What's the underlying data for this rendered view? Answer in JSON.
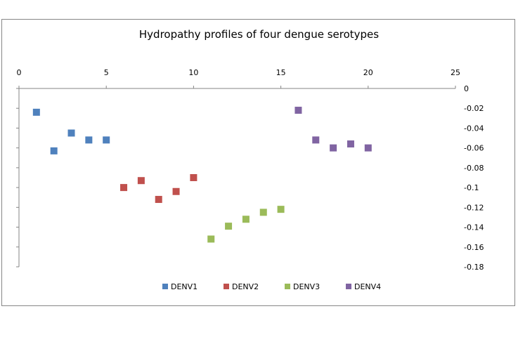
{
  "chart_data": {
    "type": "scatter",
    "title": "Hydropathy profiles of four dengue serotypes",
    "xlabel": "",
    "ylabel": "",
    "xlim": [
      0,
      25
    ],
    "ylim": [
      -0.18,
      0
    ],
    "x_ticks": [
      "0",
      "5",
      "10",
      "15",
      "20",
      "25"
    ],
    "y_ticks": [
      "0",
      "-0.02",
      "-0.04",
      "-0.06",
      "-0.08",
      "-0.1",
      "-0.12",
      "-0.14",
      "-0.16",
      "-0.18"
    ],
    "x_axis_position": "top",
    "y_axis_position": "right",
    "grid": false,
    "legend_position": "bottom",
    "series": [
      {
        "name": "DENV1",
        "color": "#4F81BD",
        "points": [
          [
            1,
            -0.024
          ],
          [
            2,
            -0.063
          ],
          [
            3,
            -0.045
          ],
          [
            4,
            -0.052
          ],
          [
            5,
            -0.052
          ]
        ]
      },
      {
        "name": "DENV2",
        "color": "#C0504D",
        "points": [
          [
            6,
            -0.1
          ],
          [
            7,
            -0.093
          ],
          [
            8,
            -0.112
          ],
          [
            9,
            -0.104
          ],
          [
            10,
            -0.09
          ]
        ]
      },
      {
        "name": "DENV3",
        "color": "#9BBB59",
        "points": [
          [
            11,
            -0.152
          ],
          [
            12,
            -0.139
          ],
          [
            13,
            -0.132
          ],
          [
            14,
            -0.125
          ],
          [
            15,
            -0.122
          ]
        ]
      },
      {
        "name": "DENV4",
        "color": "#8064A2",
        "points": [
          [
            16,
            -0.022
          ],
          [
            17,
            -0.052
          ],
          [
            18,
            -0.06
          ],
          [
            19,
            -0.056
          ],
          [
            20,
            -0.06
          ]
        ]
      }
    ]
  }
}
